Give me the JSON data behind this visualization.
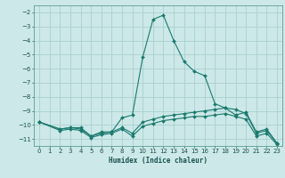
{
  "title": "",
  "xlabel": "Humidex (Indice chaleur)",
  "ylabel": "",
  "bg_color": "#cce8e8",
  "grid_color": "#aacfcf",
  "line_color": "#1a7a6e",
  "xlim": [
    -0.5,
    23.5
  ],
  "ylim": [
    -11.5,
    -1.5
  ],
  "yticks": [
    -11,
    -10,
    -9,
    -8,
    -7,
    -6,
    -5,
    -4,
    -3,
    -2
  ],
  "xticks": [
    0,
    1,
    2,
    3,
    4,
    5,
    6,
    7,
    8,
    9,
    10,
    11,
    12,
    13,
    14,
    15,
    16,
    17,
    18,
    19,
    20,
    21,
    22,
    23
  ],
  "series": [
    {
      "x": [
        0,
        2,
        3,
        4,
        5,
        6,
        7,
        8,
        9,
        10,
        11,
        12,
        13,
        14,
        15,
        16,
        17,
        18,
        19,
        20,
        21,
        22,
        23
      ],
      "y": [
        -9.8,
        -10.3,
        -10.2,
        -10.2,
        -10.8,
        -10.5,
        -10.5,
        -9.5,
        -9.3,
        -5.2,
        -2.5,
        -2.2,
        -4.0,
        -5.5,
        -6.2,
        -6.5,
        -8.5,
        -8.8,
        -9.3,
        -9.1,
        -10.5,
        -10.3,
        -11.3
      ]
    },
    {
      "x": [
        0,
        2,
        3,
        4,
        5,
        6,
        7,
        8,
        9,
        10,
        11,
        12,
        13,
        14,
        15,
        16,
        17,
        18,
        19,
        20,
        21,
        22,
        23
      ],
      "y": [
        -9.8,
        -10.3,
        -10.2,
        -10.3,
        -10.8,
        -10.6,
        -10.5,
        -10.2,
        -10.6,
        -9.8,
        -9.6,
        -9.4,
        -9.3,
        -9.2,
        -9.1,
        -9.0,
        -8.9,
        -8.8,
        -8.9,
        -9.2,
        -10.6,
        -10.4,
        -11.3
      ]
    },
    {
      "x": [
        0,
        2,
        3,
        4,
        5,
        6,
        7,
        8,
        9,
        10,
        11,
        12,
        13,
        14,
        15,
        16,
        17,
        18,
        19,
        20,
        21,
        22,
        23
      ],
      "y": [
        -9.8,
        -10.4,
        -10.3,
        -10.4,
        -10.9,
        -10.7,
        -10.6,
        -10.3,
        -10.8,
        -10.1,
        -9.9,
        -9.7,
        -9.6,
        -9.5,
        -9.4,
        -9.4,
        -9.3,
        -9.2,
        -9.4,
        -9.6,
        -10.8,
        -10.6,
        -11.4
      ]
    }
  ]
}
